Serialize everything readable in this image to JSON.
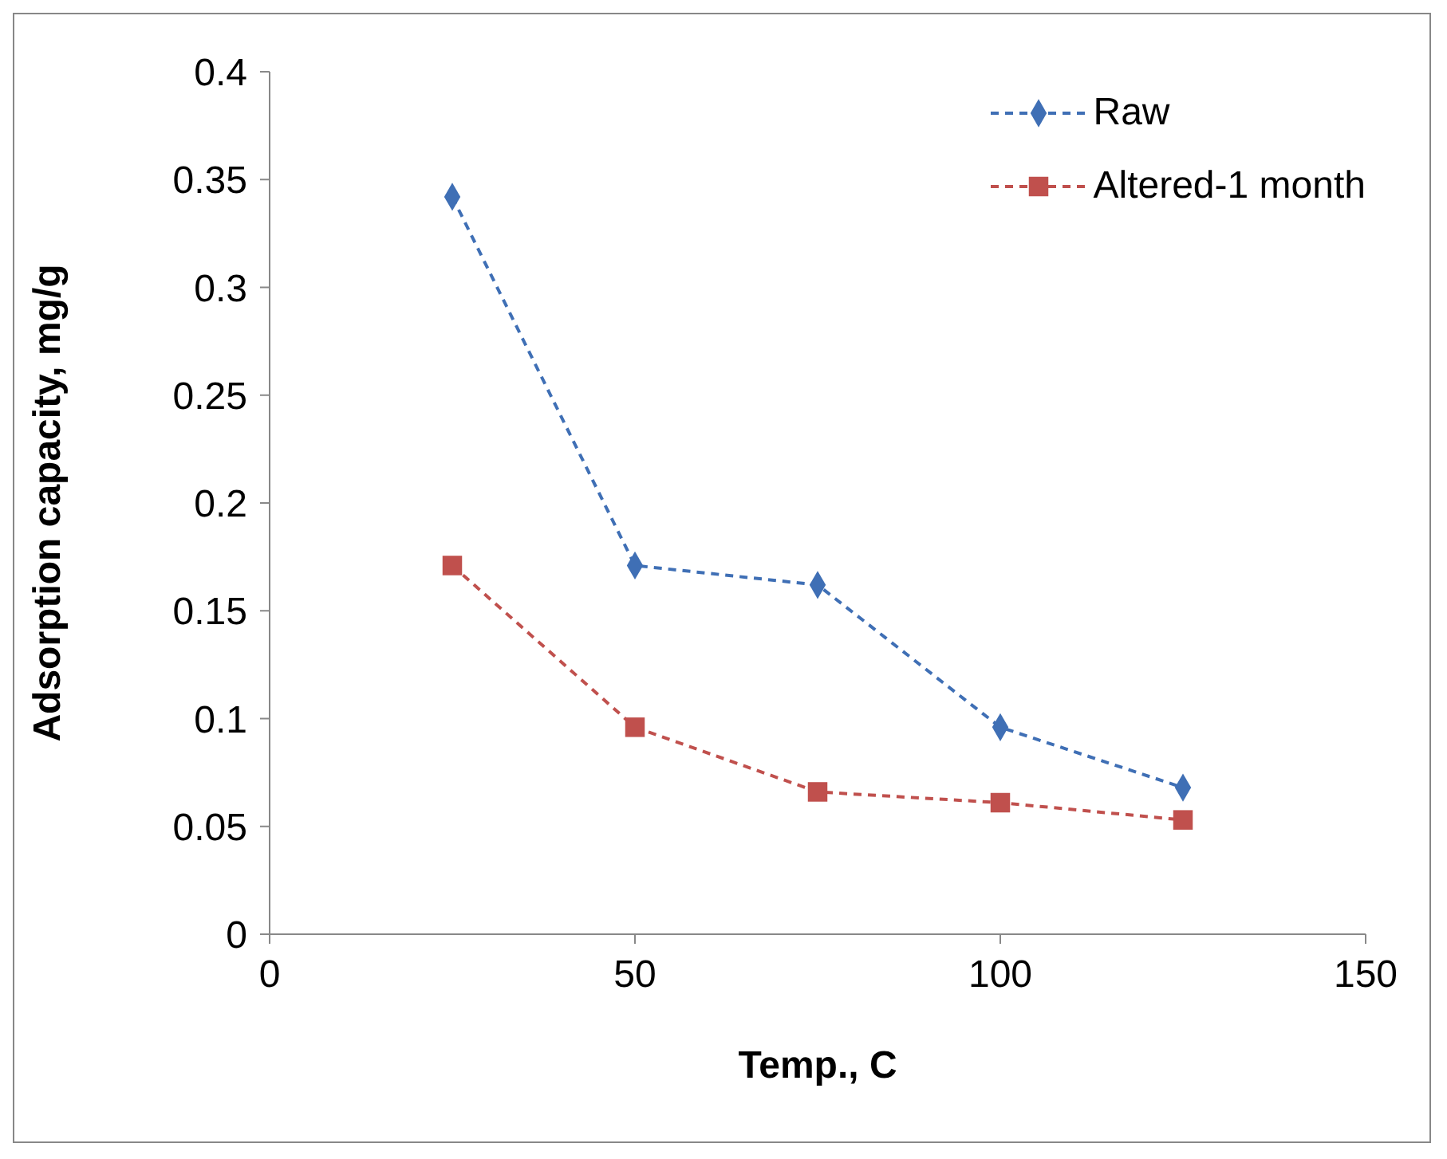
{
  "chart_data": {
    "type": "line",
    "xlabel": "Temp., C",
    "ylabel": "Adsorption capacity, mg/g",
    "x": [
      25,
      50,
      75,
      100,
      125
    ],
    "series": [
      {
        "name": "Raw",
        "color": "#3f6fb5",
        "values": [
          0.342,
          0.171,
          0.162,
          0.096,
          0.068
        ],
        "marker": "diamond"
      },
      {
        "name": "Altered-1 month",
        "color": "#c0504d",
        "values": [
          0.171,
          0.096,
          0.066,
          0.061,
          0.053
        ],
        "marker": "square"
      }
    ],
    "xlim": [
      0,
      150
    ],
    "xticks": [
      0,
      50,
      100,
      150
    ],
    "ylim": [
      0,
      0.4
    ],
    "yticks": [
      0,
      0.05,
      0.1,
      0.15,
      0.2,
      0.25,
      0.3,
      0.35,
      0.4
    ],
    "grid": false,
    "legend": "top right",
    "line_style": "dashed"
  }
}
